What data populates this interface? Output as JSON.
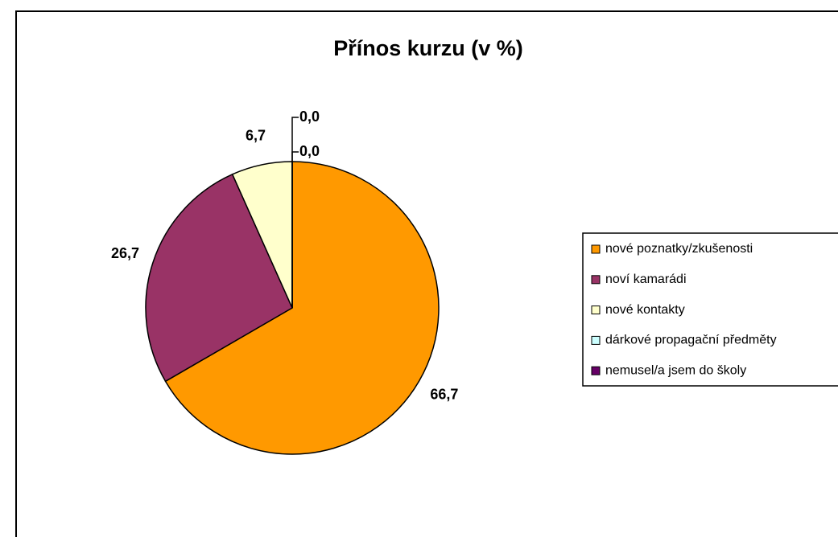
{
  "chart_data": {
    "type": "pie",
    "title": "Přínos kurzu (v %)",
    "categories": [
      "nové poznatky/zkušenosti",
      "noví kamarádi",
      "nové kontakty",
      "dárkové propagační předměty",
      "nemusel/a jsem do školy"
    ],
    "values": [
      66.7,
      26.7,
      6.7,
      0.0,
      0.0
    ],
    "value_labels": [
      "66,7",
      "26,7",
      "6,7",
      "0,0",
      "0,0"
    ],
    "colors": [
      "#FF9900",
      "#993366",
      "#FFFFCC",
      "#CCFFFF",
      "#660066"
    ],
    "legend": "right"
  }
}
